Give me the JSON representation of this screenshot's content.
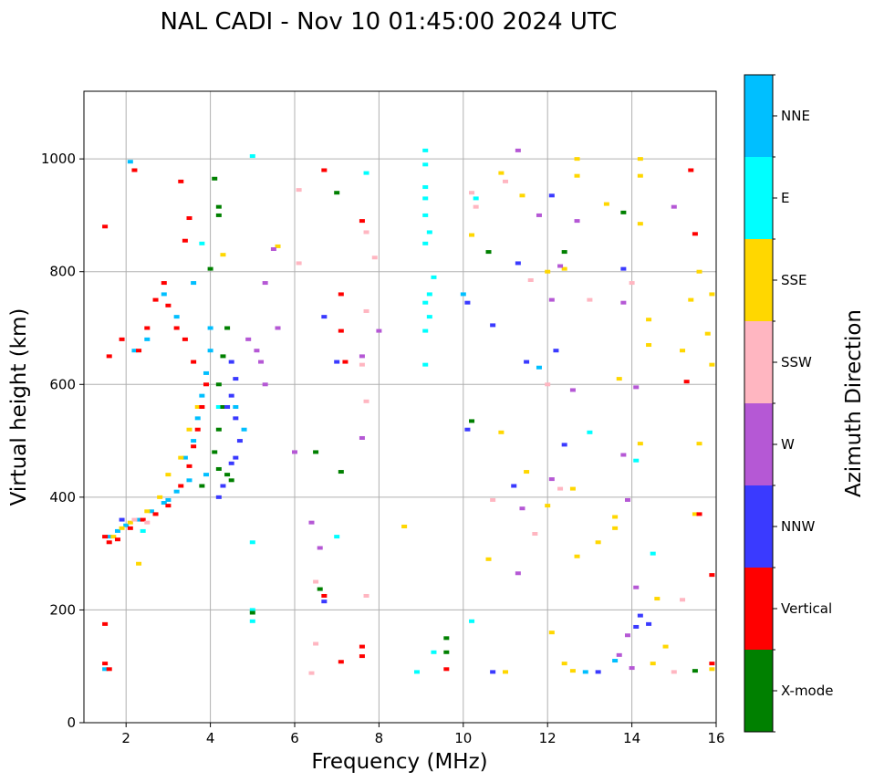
{
  "chart_data": {
    "type": "scatter",
    "title": "NAL CADI - Nov 10 01:45:00 2024 UTC",
    "xlabel": "Frequency (MHz)",
    "ylabel": "Virtual height (km)",
    "xlim": [
      1,
      16
    ],
    "ylim": [
      0,
      1120
    ],
    "x_ticks": [
      "2",
      "4",
      "6",
      "8",
      "10",
      "12",
      "14",
      "16"
    ],
    "y_ticks": [
      "0",
      "200",
      "400",
      "600",
      "800",
      "1000"
    ],
    "grid": true,
    "colorbar": {
      "label": "Azimuth Direction",
      "categories": [
        {
          "name": "X-mode",
          "color": "#008000"
        },
        {
          "name": "Vertical",
          "color": "#ff0000"
        },
        {
          "name": "NNW",
          "color": "#3a3aff"
        },
        {
          "name": "W",
          "color": "#b558d5"
        },
        {
          "name": "SSW",
          "color": "#ffb6c1"
        },
        {
          "name": "SSE",
          "color": "#ffd700"
        },
        {
          "name": "E",
          "color": "#00ffff"
        },
        {
          "name": "NNE",
          "color": "#00bfff"
        }
      ]
    },
    "series": [
      {
        "name": "NNE",
        "points": [
          [
            1.6,
            330
          ],
          [
            1.8,
            340
          ],
          [
            2.0,
            350
          ],
          [
            2.3,
            360
          ],
          [
            2.6,
            375
          ],
          [
            2.9,
            390
          ],
          [
            3.2,
            410
          ],
          [
            3.5,
            430
          ],
          [
            3.4,
            470
          ],
          [
            3.6,
            500
          ],
          [
            3.7,
            540
          ],
          [
            3.8,
            580
          ],
          [
            3.9,
            620
          ],
          [
            4.0,
            660
          ],
          [
            4.0,
            700
          ],
          [
            3.2,
            720
          ],
          [
            2.9,
            760
          ],
          [
            2.5,
            680
          ],
          [
            2.2,
            660
          ],
          [
            3.6,
            780
          ],
          [
            4.6,
            560
          ],
          [
            4.8,
            520
          ],
          [
            2.1,
            995
          ],
          [
            10.0,
            760
          ],
          [
            11.8,
            630
          ],
          [
            12.9,
            90
          ],
          [
            13.6,
            110
          ],
          [
            1.5,
            95
          ],
          [
            3.0,
            395
          ],
          [
            3.9,
            440
          ]
        ]
      },
      {
        "name": "E",
        "points": [
          [
            9.1,
            1015
          ],
          [
            9.1,
            990
          ],
          [
            9.1,
            950
          ],
          [
            9.1,
            930
          ],
          [
            9.1,
            900
          ],
          [
            9.2,
            870
          ],
          [
            9.1,
            850
          ],
          [
            9.3,
            790
          ],
          [
            9.2,
            760
          ],
          [
            9.1,
            745
          ],
          [
            9.2,
            720
          ],
          [
            9.1,
            695
          ],
          [
            9.1,
            635
          ],
          [
            9.3,
            125
          ],
          [
            8.9,
            90
          ],
          [
            10.2,
            180
          ],
          [
            5.0,
            1005
          ],
          [
            5.0,
            320
          ],
          [
            5.0,
            200
          ],
          [
            5.0,
            180
          ],
          [
            10.3,
            930
          ],
          [
            7.7,
            975
          ],
          [
            7.0,
            330
          ],
          [
            3.8,
            850
          ],
          [
            4.2,
            560
          ],
          [
            2.4,
            340
          ],
          [
            13.0,
            515
          ],
          [
            14.1,
            465
          ],
          [
            14.5,
            300
          ]
        ]
      },
      {
        "name": "SSE",
        "points": [
          [
            1.7,
            330
          ],
          [
            1.9,
            345
          ],
          [
            2.1,
            355
          ],
          [
            2.5,
            375
          ],
          [
            2.8,
            400
          ],
          [
            3.0,
            440
          ],
          [
            3.3,
            470
          ],
          [
            3.5,
            520
          ],
          [
            3.7,
            560
          ],
          [
            12.7,
            1000
          ],
          [
            12.7,
            970
          ],
          [
            12.4,
            805
          ],
          [
            12.0,
            800
          ],
          [
            11.4,
            935
          ],
          [
            13.4,
            920
          ],
          [
            14.2,
            1000
          ],
          [
            14.2,
            970
          ],
          [
            14.2,
            885
          ],
          [
            15.6,
            800
          ],
          [
            15.9,
            760
          ],
          [
            15.4,
            750
          ],
          [
            15.8,
            690
          ],
          [
            15.2,
            660
          ],
          [
            15.9,
            635
          ],
          [
            14.4,
            715
          ],
          [
            14.4,
            670
          ],
          [
            15.6,
            495
          ],
          [
            14.2,
            495
          ],
          [
            13.7,
            610
          ],
          [
            13.6,
            365
          ],
          [
            13.6,
            345
          ],
          [
            15.5,
            370
          ],
          [
            12.6,
            415
          ],
          [
            12.7,
            295
          ],
          [
            13.2,
            320
          ],
          [
            12.0,
            385
          ],
          [
            12.1,
            160
          ],
          [
            12.4,
            105
          ],
          [
            12.6,
            92
          ],
          [
            11.0,
            90
          ],
          [
            10.6,
            290
          ],
          [
            14.6,
            220
          ],
          [
            14.8,
            135
          ],
          [
            14.5,
            105
          ],
          [
            15.9,
            95
          ],
          [
            8.6,
            348
          ],
          [
            10.2,
            865
          ],
          [
            10.9,
            975
          ],
          [
            10.9,
            515
          ],
          [
            11.5,
            445
          ],
          [
            2.3,
            282
          ],
          [
            4.3,
            830
          ],
          [
            5.6,
            845
          ]
        ]
      },
      {
        "name": "Vertical",
        "points": [
          [
            1.5,
            330
          ],
          [
            1.6,
            320
          ],
          [
            1.8,
            325
          ],
          [
            2.1,
            345
          ],
          [
            2.4,
            360
          ],
          [
            2.7,
            370
          ],
          [
            3.0,
            385
          ],
          [
            3.3,
            420
          ],
          [
            3.5,
            455
          ],
          [
            3.6,
            490
          ],
          [
            3.7,
            520
          ],
          [
            3.8,
            560
          ],
          [
            3.9,
            600
          ],
          [
            3.6,
            640
          ],
          [
            3.4,
            680
          ],
          [
            3.2,
            700
          ],
          [
            3.0,
            740
          ],
          [
            2.9,
            780
          ],
          [
            2.7,
            750
          ],
          [
            2.5,
            700
          ],
          [
            2.3,
            660
          ],
          [
            1.9,
            680
          ],
          [
            1.6,
            650
          ],
          [
            1.5,
            880
          ],
          [
            1.5,
            175
          ],
          [
            1.5,
            105
          ],
          [
            1.6,
            95
          ],
          [
            3.3,
            960
          ],
          [
            3.5,
            895
          ],
          [
            3.4,
            855
          ],
          [
            6.7,
            980
          ],
          [
            7.6,
            890
          ],
          [
            7.1,
            760
          ],
          [
            7.1,
            695
          ],
          [
            7.2,
            640
          ],
          [
            6.7,
            225
          ],
          [
            7.6,
            135
          ],
          [
            7.6,
            118
          ],
          [
            7.1,
            108
          ],
          [
            9.6,
            95
          ],
          [
            15.4,
            980
          ],
          [
            15.5,
            867
          ],
          [
            15.3,
            605
          ],
          [
            15.6,
            370
          ],
          [
            15.9,
            262
          ],
          [
            15.9,
            105
          ],
          [
            2.2,
            980
          ]
        ]
      },
      {
        "name": "X-mode",
        "points": [
          [
            4.1,
            965
          ],
          [
            4.2,
            915
          ],
          [
            4.2,
            900
          ],
          [
            4.0,
            805
          ],
          [
            4.4,
            700
          ],
          [
            4.3,
            650
          ],
          [
            4.2,
            600
          ],
          [
            4.3,
            560
          ],
          [
            4.2,
            520
          ],
          [
            4.1,
            480
          ],
          [
            4.2,
            450
          ],
          [
            4.4,
            440
          ],
          [
            4.5,
            430
          ],
          [
            3.8,
            420
          ],
          [
            5.0,
            195
          ],
          [
            6.5,
            480
          ],
          [
            6.6,
            237
          ],
          [
            9.6,
            150
          ],
          [
            9.6,
            125
          ],
          [
            10.2,
            535
          ],
          [
            10.6,
            835
          ],
          [
            12.4,
            835
          ],
          [
            13.8,
            905
          ],
          [
            15.5,
            92
          ],
          [
            7.1,
            445
          ],
          [
            7.0,
            940
          ]
        ]
      },
      {
        "name": "NNW",
        "points": [
          [
            4.5,
            640
          ],
          [
            4.6,
            610
          ],
          [
            4.5,
            580
          ],
          [
            4.4,
            560
          ],
          [
            4.6,
            540
          ],
          [
            4.7,
            500
          ],
          [
            4.6,
            470
          ],
          [
            4.5,
            460
          ],
          [
            4.3,
            420
          ],
          [
            4.2,
            400
          ],
          [
            1.9,
            360
          ],
          [
            6.7,
            215
          ],
          [
            10.1,
            745
          ],
          [
            10.1,
            520
          ],
          [
            10.7,
            705
          ],
          [
            11.2,
            420
          ],
          [
            12.2,
            660
          ],
          [
            12.4,
            493
          ],
          [
            13.8,
            805
          ],
          [
            14.2,
            190
          ],
          [
            14.1,
            170
          ],
          [
            14.4,
            175
          ],
          [
            13.2,
            90
          ],
          [
            10.7,
            90
          ],
          [
            6.7,
            720
          ],
          [
            7.0,
            640
          ],
          [
            12.1,
            935
          ],
          [
            11.5,
            640
          ],
          [
            11.3,
            815
          ]
        ]
      },
      {
        "name": "W",
        "points": [
          [
            5.5,
            840
          ],
          [
            5.3,
            600
          ],
          [
            5.1,
            660
          ],
          [
            4.9,
            680
          ],
          [
            5.3,
            780
          ],
          [
            5.6,
            700
          ],
          [
            5.2,
            640
          ],
          [
            6.0,
            480
          ],
          [
            7.6,
            650
          ],
          [
            7.6,
            505
          ],
          [
            8.0,
            695
          ],
          [
            12.1,
            750
          ],
          [
            12.7,
            890
          ],
          [
            12.6,
            590
          ],
          [
            13.8,
            745
          ],
          [
            14.1,
            595
          ],
          [
            13.8,
            475
          ],
          [
            13.9,
            395
          ],
          [
            14.1,
            240
          ],
          [
            13.9,
            155
          ],
          [
            13.7,
            120
          ],
          [
            14.0,
            97
          ],
          [
            15.0,
            915
          ],
          [
            12.1,
            432
          ],
          [
            11.3,
            265
          ],
          [
            11.4,
            380
          ],
          [
            6.4,
            355
          ],
          [
            6.6,
            310
          ],
          [
            11.3,
            1015
          ],
          [
            11.8,
            900
          ],
          [
            12.3,
            810
          ]
        ]
      },
      {
        "name": "SSW",
        "points": [
          [
            2.2,
            360
          ],
          [
            2.5,
            355
          ],
          [
            6.5,
            140
          ],
          [
            6.5,
            250
          ],
          [
            7.7,
            870
          ],
          [
            7.7,
            730
          ],
          [
            7.9,
            825
          ],
          [
            7.7,
            570
          ],
          [
            7.7,
            225
          ],
          [
            10.2,
            940
          ],
          [
            10.7,
            395
          ],
          [
            11.0,
            960
          ],
          [
            11.7,
            335
          ],
          [
            12.3,
            415
          ],
          [
            13.0,
            750
          ],
          [
            14.0,
            780
          ],
          [
            15.0,
            90
          ],
          [
            15.2,
            218
          ],
          [
            11.6,
            785
          ],
          [
            12.0,
            600
          ],
          [
            6.1,
            815
          ],
          [
            6.1,
            945
          ],
          [
            6.4,
            88
          ],
          [
            7.6,
            635
          ],
          [
            10.3,
            915
          ]
        ]
      }
    ]
  }
}
